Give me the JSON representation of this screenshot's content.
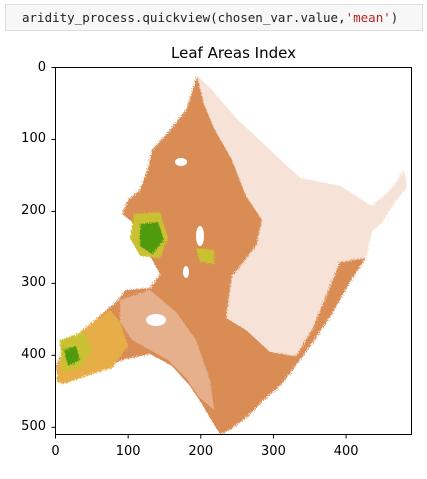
{
  "code_cell": {
    "code_prefix": "aridity_process.quickview(chosen_var.value,",
    "code_string": "'mean'",
    "code_suffix": ")"
  },
  "chart_data": {
    "type": "heatmap",
    "title": "Leaf Areas Index",
    "xlabel": "",
    "ylabel": "",
    "xlim": [
      0,
      490
    ],
    "ylim": [
      510,
      0
    ],
    "x_ticks": [
      0,
      100,
      200,
      300,
      400
    ],
    "y_ticks": [
      0,
      100,
      200,
      300,
      400,
      500
    ],
    "x_tick_labels": [
      "0",
      "100",
      "200",
      "300",
      "400"
    ],
    "y_tick_labels": [
      "0",
      "100",
      "200",
      "300",
      "400",
      "500"
    ],
    "grid": false,
    "colors": {
      "low": "#f6e2d6",
      "mid_low": "#e6b08c",
      "mid": "#d98d55",
      "mid_high": "#e7ad47",
      "high": "#c9c030",
      "max": "#4f9a10"
    }
  }
}
